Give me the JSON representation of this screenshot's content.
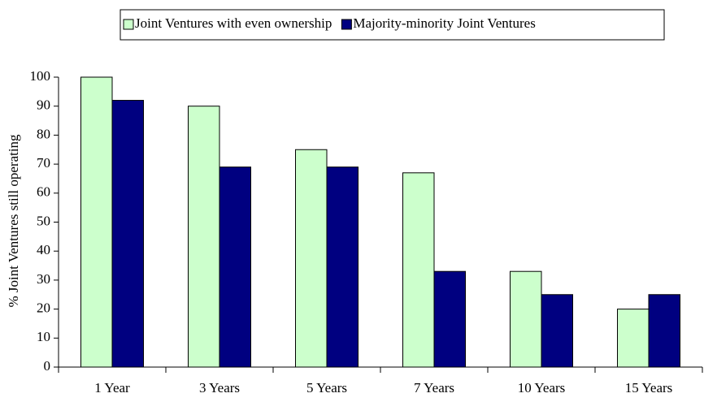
{
  "chart_data": {
    "type": "bar",
    "categories": [
      "1 Year",
      "3 Years",
      "5 Years",
      "7 Years",
      "10 Years",
      "15 Years"
    ],
    "series": [
      {
        "name": "Joint Ventures with even ownership",
        "color": "#ccffcc",
        "values": [
          100,
          90,
          75,
          67,
          33,
          20
        ]
      },
      {
        "name": "Majority-minority Joint Ventures",
        "color": "#000080",
        "values": [
          92,
          69,
          69,
          33,
          25,
          25
        ]
      }
    ],
    "y_label": "% Joint Ventures still operating",
    "ylim": [
      0,
      100
    ],
    "yticks": [
      0,
      10,
      20,
      30,
      40,
      50,
      60,
      70,
      80,
      90,
      100
    ],
    "legend": "top"
  }
}
